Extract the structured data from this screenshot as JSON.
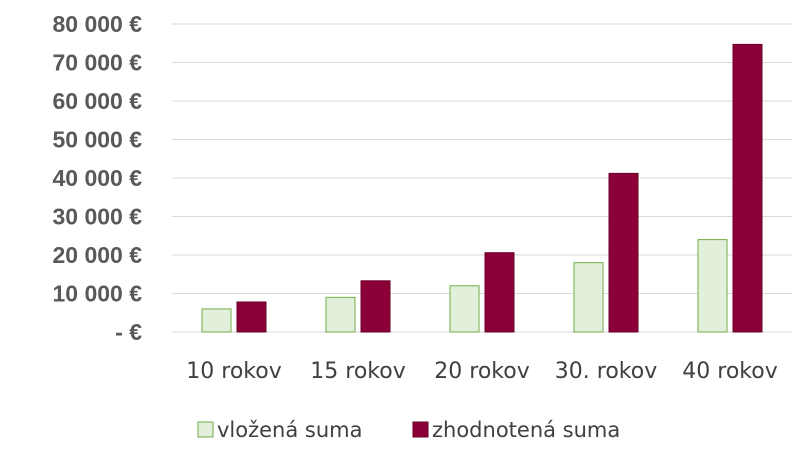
{
  "chart_data": {
    "type": "bar",
    "title": "",
    "xlabel": "",
    "ylabel": "",
    "categories": [
      "10 rokov",
      "15 rokov",
      "20 rokov",
      "30. rokov",
      "40 rokov"
    ],
    "series": [
      {
        "name": "vložená suma",
        "values": [
          6000,
          9000,
          12000,
          18000,
          24000
        ],
        "fill": "#e2efda",
        "stroke": "#70ad47"
      },
      {
        "name": "zhodnotená suma",
        "values": [
          7800,
          13300,
          20600,
          41200,
          74700
        ],
        "fill": "#8b0036",
        "stroke": "#6b0029"
      }
    ],
    "ylim": [
      0,
      80000
    ],
    "y_ticks": [
      {
        "value": 0,
        "label": "-   €"
      },
      {
        "value": 10000,
        "label": "10 000 €"
      },
      {
        "value": 20000,
        "label": "20 000 €"
      },
      {
        "value": 30000,
        "label": "30 000 €"
      },
      {
        "value": 40000,
        "label": "40 000 €"
      },
      {
        "value": 50000,
        "label": "50 000 €"
      },
      {
        "value": 60000,
        "label": "60 000 €"
      },
      {
        "value": 70000,
        "label": "70 000 €"
      },
      {
        "value": 80000,
        "label": "80 000 €"
      }
    ],
    "grid": true,
    "legend": "bottom"
  }
}
